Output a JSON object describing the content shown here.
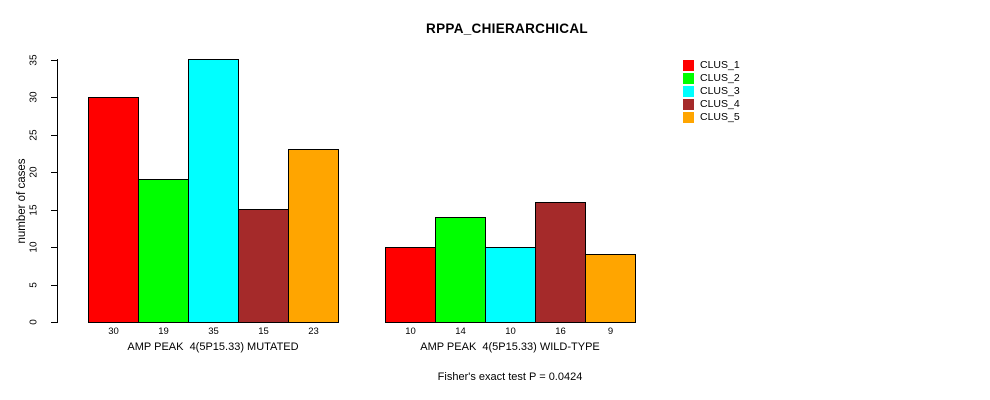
{
  "chart_data": {
    "type": "bar",
    "title": "RPPA_CHIERARCHICAL",
    "ylabel": "number of cases",
    "xlabel": "",
    "ylim": [
      0,
      35
    ],
    "yticks": [
      0,
      5,
      10,
      15,
      20,
      25,
      30,
      35
    ],
    "grid": false,
    "legend_position": "top-right",
    "bar_border_color": "#000000",
    "categories": [
      "AMP PEAK  4(5P15.33) MUTATED",
      "AMP PEAK  4(5P15.33) WILD-TYPE"
    ],
    "series": [
      {
        "name": "CLUS_1",
        "color": "#ff0000",
        "values": [
          30,
          10
        ]
      },
      {
        "name": "CLUS_2",
        "color": "#00ff00",
        "values": [
          19,
          14
        ]
      },
      {
        "name": "CLUS_3",
        "color": "#00ffff",
        "values": [
          35,
          10
        ]
      },
      {
        "name": "CLUS_4",
        "color": "#a52a2a",
        "values": [
          15,
          16
        ]
      },
      {
        "name": "CLUS_5",
        "color": "#ffa500",
        "values": [
          23,
          9
        ]
      }
    ],
    "bar_value_labels": [
      [
        "30",
        "19",
        "35",
        "15",
        "23"
      ],
      [
        "10",
        "14",
        "10",
        "16",
        "9"
      ]
    ],
    "annotation": "Fisher's exact test P = 0.0424"
  }
}
